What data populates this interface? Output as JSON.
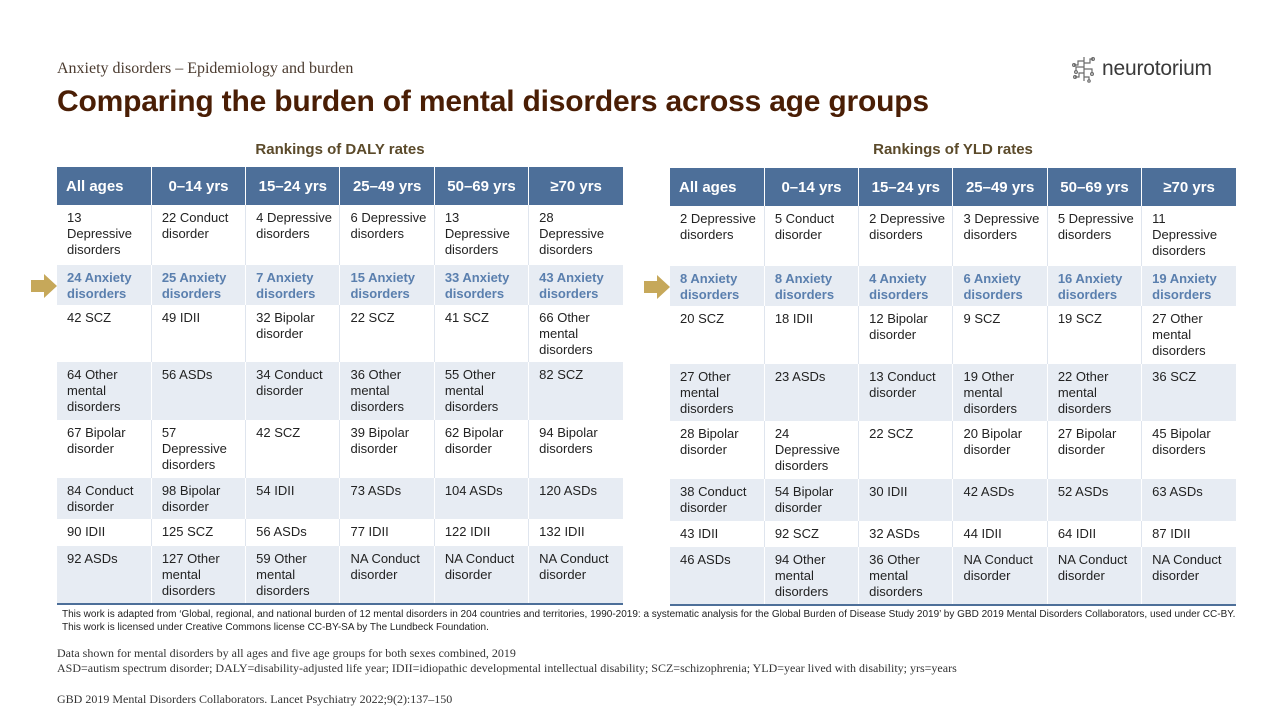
{
  "header": {
    "subtitle": "Anxiety disorders – Epidemiology and burden",
    "title": "Comparing the burden of mental disorders across age groups",
    "logo_text": "neurotorium"
  },
  "daly_table": {
    "heading": "Rankings of DALY rates",
    "columns": [
      "All ages",
      "0–14 yrs",
      "15–24 yrs",
      "25–49 yrs",
      "50–69 yrs",
      "≥70 yrs"
    ],
    "rows": [
      [
        "13 Depressive disorders",
        "22 Conduct disorder",
        "4 Depressive disorders",
        "6 Depressive disorders",
        "13 Depressive disorders",
        "28 Depressive disorders"
      ],
      [
        "24 Anxiety disorders",
        "25 Anxiety disorders",
        "7 Anxiety disorders",
        "15 Anxiety disorders",
        "33 Anxiety disorders",
        "43 Anxiety disorders"
      ],
      [
        "42 SCZ",
        "49 IDII",
        "32 Bipolar disorder",
        "22 SCZ",
        "41 SCZ",
        "66 Other mental disorders"
      ],
      [
        "64 Other mental disorders",
        "56 ASDs",
        "34 Conduct disorder",
        "36 Other mental disorders",
        "55 Other mental disorders",
        "82 SCZ"
      ],
      [
        "67 Bipolar disorder",
        "57 Depressive disorders",
        "42 SCZ",
        "39 Bipolar disorder",
        "62 Bipolar disorder",
        "94 Bipolar disorders"
      ],
      [
        "84 Conduct disorder",
        "98 Bipolar disorder",
        "54 IDII",
        "73 ASDs",
        "104 ASDs",
        "120 ASDs"
      ],
      [
        "90 IDII",
        "125 SCZ",
        "56 ASDs",
        "77 IDII",
        "122 IDII",
        "132 IDII"
      ],
      [
        "92 ASDs",
        "127 Other mental disorders",
        "59 Other mental disorders",
        "NA Conduct disorder",
        "NA Conduct disorder",
        "NA Conduct disorder"
      ]
    ]
  },
  "yld_table": {
    "heading": "Rankings of YLD rates",
    "columns": [
      "All ages",
      "0–14 yrs",
      "15–24 yrs",
      "25–49 yrs",
      "50–69 yrs",
      "≥70 yrs"
    ],
    "rows": [
      [
        "2 Depressive disorders",
        "5 Conduct disorder",
        "2 Depressive disorders",
        "3 Depressive disorders",
        "5 Depressive disorders",
        "11 Depressive disorders"
      ],
      [
        "8 Anxiety disorders",
        "8 Anxiety disorders",
        "4 Anxiety disorders",
        "6 Anxiety disorders",
        "16 Anxiety disorders",
        "19 Anxiety disorders"
      ],
      [
        "20 SCZ",
        "18 IDII",
        "12 Bipolar disorder",
        "9 SCZ",
        "19 SCZ",
        "27 Other mental disorders"
      ],
      [
        "27 Other mental disorders",
        "23 ASDs",
        "13 Conduct disorder",
        "19 Other mental disorders",
        "22 Other mental disorders",
        "36 SCZ"
      ],
      [
        "28 Bipolar disorder",
        "24 Depressive disorders",
        "22 SCZ",
        "20 Bipolar disorder",
        "27 Bipolar disorder",
        "45 Bipolar disorders"
      ],
      [
        "38 Conduct disorder",
        "54 Bipolar disorder",
        "30 IDII",
        "42 ASDs",
        "52 ASDs",
        "63 ASDs"
      ],
      [
        "43 IDII",
        "92 SCZ",
        "32 ASDs",
        "44 IDII",
        "64 IDII",
        "87 IDII"
      ],
      [
        "46 ASDs",
        "94 Other mental disorders",
        "36 Other mental disorders",
        "NA Conduct disorder",
        "NA Conduct disorder",
        "NA Conduct disorder"
      ]
    ]
  },
  "footer": {
    "credit": "This work is adapted from ‘Global, regional, and national burden of 12 mental disorders in 204 countries and territories, 1990-2019: a systematic analysis for the Global Burden of Disease Study 2019’ by GBD 2019 Mental Disorders Collaborators, used under CC-BY. This work is licensed under Creative Commons license CC-BY-SA by The Lundbeck Foundation.",
    "note1": "Data shown for mental disorders by all ages and five age groups for both sexes combined, 2019",
    "note2": "ASD=autism spectrum disorder; DALY=disability-adjusted life year; IDII=idiopathic developmental intellectual disability; SCZ=schizophrenia; YLD=year lived with disability; yrs=years",
    "reference": "GBD 2019 Mental Disorders Collaborators. Lancet Psychiatry 2022;9(2):137–150"
  },
  "colors": {
    "header_blue": "#4d6f99",
    "row_shade": "#e7ecf3",
    "anxiety_text": "#5a7fae",
    "arrow_gold": "#c6a85a",
    "title_brown": "#4a1e05"
  }
}
